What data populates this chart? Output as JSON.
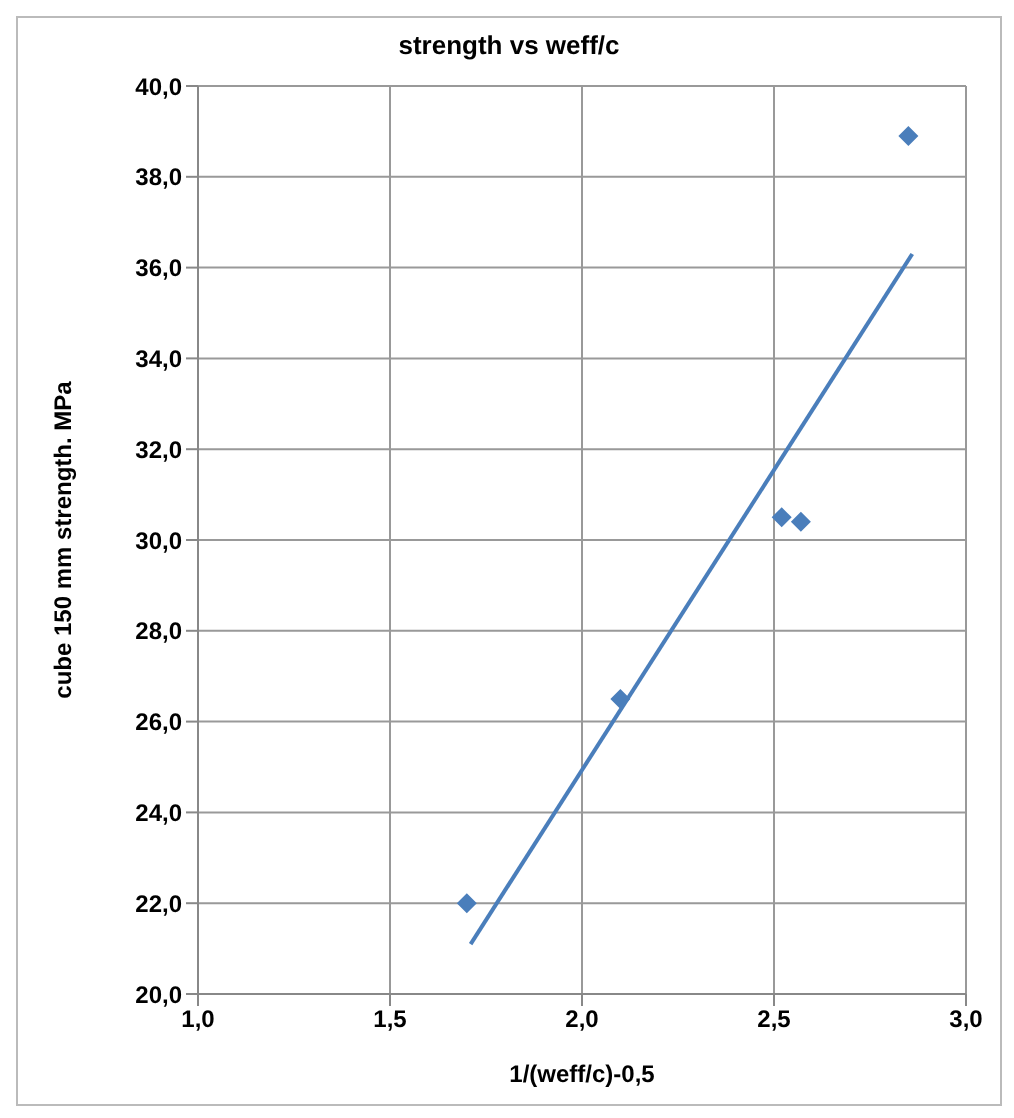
{
  "chart_data": {
    "type": "scatter",
    "title": "strength vs weff/c",
    "xlabel": "1/(weff/c)-0,5",
    "ylabel": "cube 150 mm strength. MPa",
    "series": [
      {
        "color": "#4a7ebb",
        "x": [
          1.7,
          2.1,
          2.52,
          2.57,
          2.85
        ],
        "values": [
          22.0,
          26.5,
          30.5,
          30.4,
          38.9
        ],
        "marker": "diamond"
      },
      {
        "type": "line",
        "color": "#4a7ebb",
        "x": [
          1.71,
          2.86
        ],
        "values": [
          21.1,
          36.3
        ],
        "marker": "none"
      }
    ],
    "xlim": [
      1.0,
      3.0
    ],
    "xticks": [
      {
        "value": 1.0,
        "label": "1,0"
      },
      {
        "value": 1.5,
        "label": "1,5"
      },
      {
        "value": 2.0,
        "label": "2,0"
      },
      {
        "value": 2.5,
        "label": "2,5"
      },
      {
        "value": 3.0,
        "label": "3,0"
      }
    ],
    "ylim": [
      20.0,
      40.0
    ],
    "yticks": [
      {
        "value": 20,
        "label": "20,0"
      },
      {
        "value": 22,
        "label": "22,0"
      },
      {
        "value": 24,
        "label": "24,0"
      },
      {
        "value": 26,
        "label": "26,0"
      },
      {
        "value": 28,
        "label": "28,0"
      },
      {
        "value": 30,
        "label": "30,0"
      },
      {
        "value": 32,
        "label": "32,0"
      },
      {
        "value": 34,
        "label": "34,0"
      },
      {
        "value": 36,
        "label": "36,0"
      },
      {
        "value": 38,
        "label": "38,0"
      },
      {
        "value": 40,
        "label": "40,0"
      }
    ],
    "grid": true,
    "legend": false
  }
}
